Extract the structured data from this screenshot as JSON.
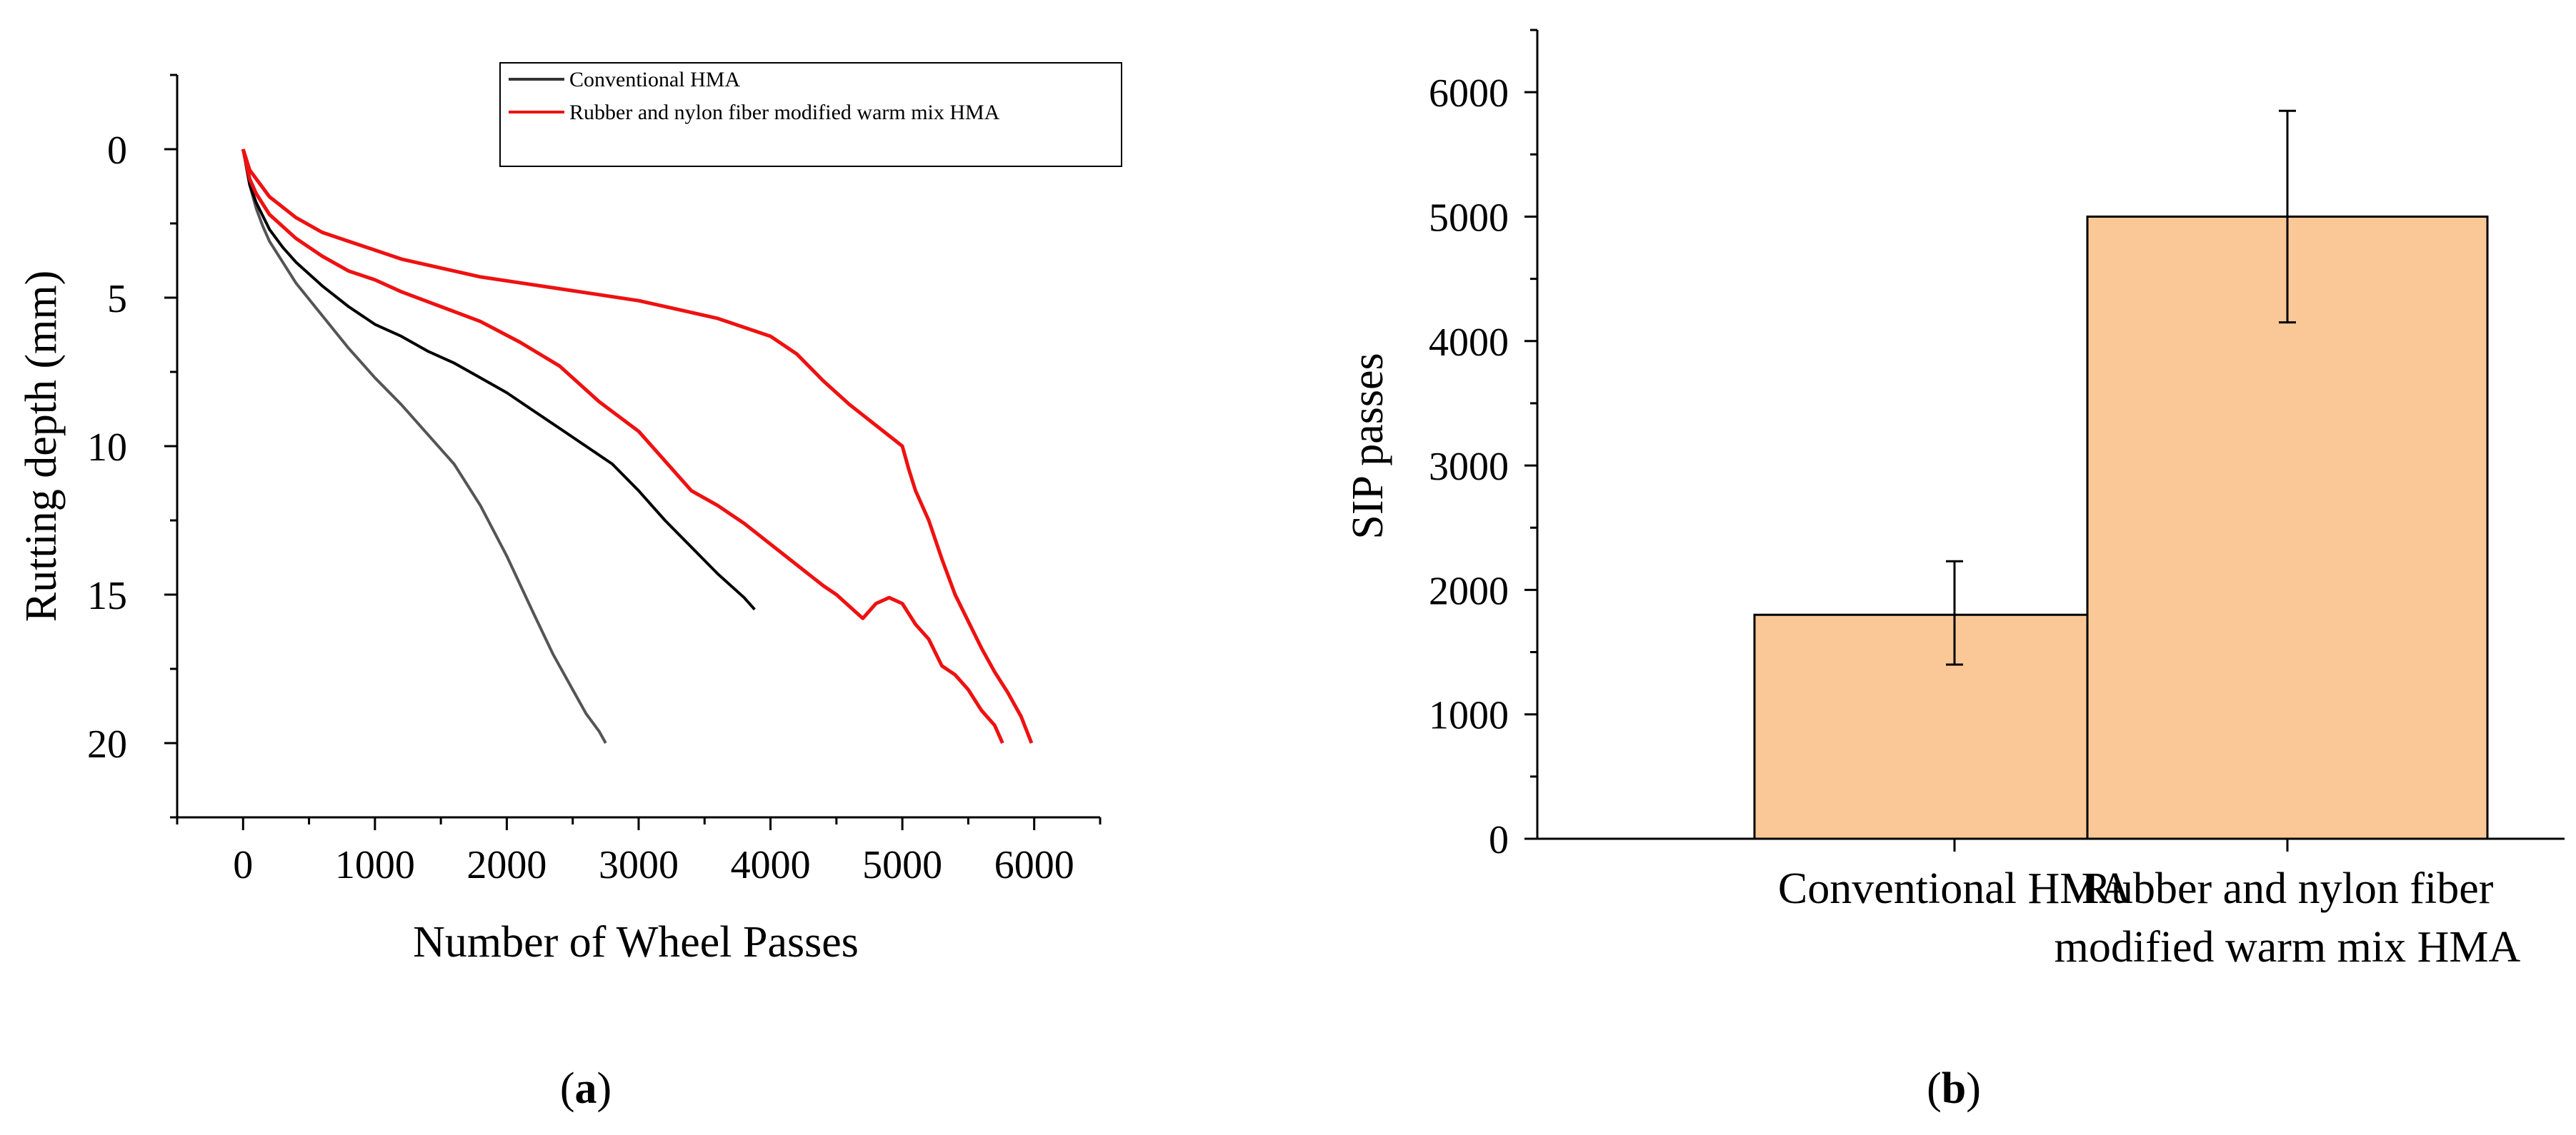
{
  "chart_data": [
    {
      "panel": "a",
      "type": "line",
      "xlabel": "Number of Wheel Passes",
      "ylabel": "Rutting depth (mm)",
      "xlim": [
        -500,
        6500
      ],
      "ylim": [
        -2.5,
        22.5
      ],
      "y_inverted": true,
      "xticks": [
        0,
        1000,
        2000,
        3000,
        4000,
        5000,
        6000
      ],
      "yticks": [
        0,
        5,
        10,
        15,
        20
      ],
      "grid": false,
      "legend_position": "top-right",
      "legend": [
        {
          "label": "Conventional HMA",
          "color": "#333333"
        },
        {
          "label": "Rubber and nylon fiber modified warm mix HMA",
          "color": "#ee1111"
        }
      ],
      "series": [
        {
          "name": "Conventional HMA (replicate 1)",
          "color": "#555555",
          "x": [
            0,
            50,
            100,
            150,
            200,
            300,
            400,
            600,
            800,
            1000,
            1200,
            1400,
            1600,
            1800,
            2000,
            2200,
            2350,
            2500,
            2600,
            2700,
            2750
          ],
          "y": [
            0,
            1.2,
            2.0,
            2.6,
            3.1,
            3.8,
            4.5,
            5.6,
            6.7,
            7.7,
            8.6,
            9.6,
            10.6,
            12.0,
            13.7,
            15.6,
            17.0,
            18.2,
            19.0,
            19.6,
            20.0
          ]
        },
        {
          "name": "Conventional HMA (replicate 2)",
          "color": "#000000",
          "x": [
            0,
            50,
            100,
            200,
            300,
            400,
            600,
            800,
            1000,
            1200,
            1400,
            1600,
            1800,
            2000,
            2200,
            2400,
            2600,
            2800,
            3000,
            3200,
            3400,
            3600,
            3800,
            3880
          ],
          "y": [
            0,
            1.2,
            1.8,
            2.7,
            3.3,
            3.8,
            4.6,
            5.3,
            5.9,
            6.3,
            6.8,
            7.2,
            7.7,
            8.2,
            8.8,
            9.4,
            10.0,
            10.6,
            11.5,
            12.5,
            13.4,
            14.3,
            15.1,
            15.5
          ]
        },
        {
          "name": "Rubber and nylon fiber modified warm mix HMA (replicate 1)",
          "color": "#ee1111",
          "x": [
            0,
            50,
            100,
            200,
            400,
            600,
            800,
            1000,
            1200,
            1500,
            1800,
            2100,
            2400,
            2700,
            3000,
            3200,
            3400,
            3600,
            3800,
            4000,
            4200,
            4400,
            4500,
            4600,
            4700,
            4800,
            4900,
            5000,
            5100,
            5200,
            5300,
            5400,
            5500,
            5600,
            5700,
            5760
          ],
          "y": [
            0,
            1.0,
            1.5,
            2.2,
            3.0,
            3.6,
            4.1,
            4.4,
            4.8,
            5.3,
            5.8,
            6.5,
            7.3,
            8.5,
            9.5,
            10.5,
            11.5,
            12.0,
            12.6,
            13.3,
            14.0,
            14.7,
            15.0,
            15.4,
            15.8,
            15.3,
            15.1,
            15.3,
            16.0,
            16.5,
            17.4,
            17.7,
            18.2,
            18.9,
            19.4,
            20.0
          ]
        },
        {
          "name": "Rubber and nylon fiber modified warm mix HMA (replicate 2)",
          "color": "#ee1111",
          "x": [
            0,
            50,
            100,
            200,
            400,
            600,
            800,
            1000,
            1200,
            1500,
            1800,
            2100,
            2400,
            2700,
            3000,
            3300,
            3600,
            3800,
            4000,
            4200,
            4400,
            4600,
            4800,
            5000,
            5050,
            5100,
            5200,
            5300,
            5400,
            5500,
            5600,
            5700,
            5800,
            5900,
            5980
          ],
          "y": [
            0,
            0.7,
            1.0,
            1.6,
            2.3,
            2.8,
            3.1,
            3.4,
            3.7,
            4.0,
            4.3,
            4.5,
            4.7,
            4.9,
            5.1,
            5.4,
            5.7,
            6.0,
            6.3,
            6.9,
            7.8,
            8.6,
            9.3,
            10.0,
            10.8,
            11.5,
            12.5,
            13.8,
            15.0,
            15.9,
            16.8,
            17.6,
            18.3,
            19.1,
            20.0
          ]
        }
      ]
    },
    {
      "panel": "b",
      "type": "bar",
      "categories": [
        [
          "Conventional HMA"
        ],
        [
          "Rubber and nylon fiber",
          "modified warm mix HMA"
        ]
      ],
      "values": [
        1800,
        5000
      ],
      "error_low": [
        1400,
        4150
      ],
      "error_high": [
        2230,
        5850
      ],
      "bar_color": "#fac896",
      "ylabel": "SIP passes",
      "xlabel": "",
      "ylim": [
        0,
        6500
      ],
      "yticks": [
        0,
        1000,
        2000,
        3000,
        4000,
        5000,
        6000
      ],
      "grid": false
    }
  ],
  "panel_labels": {
    "a": {
      "open": "(",
      "letter": "a",
      "close": ")"
    },
    "b": {
      "open": "(",
      "letter": "b",
      "close": ")"
    }
  }
}
